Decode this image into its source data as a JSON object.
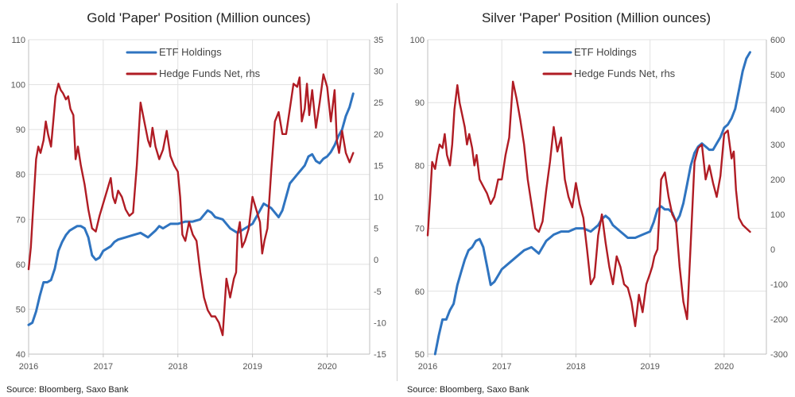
{
  "colors": {
    "etf": "#2f74c0",
    "hedge": "#b01c24",
    "grid": "#e1e1e1",
    "axis": "#bfbfbf"
  },
  "chart_data": [
    {
      "type": "line",
      "title": "Gold 'Paper' Position (Million ounces)",
      "source": "Source: Bloomberg, Saxo Bank",
      "grid": true,
      "legend_position": "top-center",
      "x_ticks": [
        "2016",
        "2017",
        "2018",
        "2019",
        "2020"
      ],
      "x_range": [
        2016.0,
        2020.57
      ],
      "y_left": {
        "range": [
          40,
          110
        ],
        "ticks": [
          "40",
          "50",
          "60",
          "70",
          "80",
          "90",
          "100",
          "110"
        ]
      },
      "y_right": {
        "range": [
          -15,
          35
        ],
        "ticks": [
          "-15",
          "-10",
          "-5",
          "0",
          "5",
          "10",
          "15",
          "20",
          "25",
          "30",
          "35"
        ]
      },
      "series": [
        {
          "name": "ETF Holdings",
          "axis": "left",
          "x": [
            2016.0,
            2016.05,
            2016.1,
            2016.15,
            2016.2,
            2016.25,
            2016.3,
            2016.35,
            2016.4,
            2016.45,
            2016.5,
            2016.55,
            2016.6,
            2016.65,
            2016.7,
            2016.75,
            2016.8,
            2016.85,
            2016.9,
            2016.95,
            2017.0,
            2017.05,
            2017.1,
            2017.15,
            2017.2,
            2017.3,
            2017.4,
            2017.5,
            2017.6,
            2017.7,
            2017.75,
            2017.8,
            2017.9,
            2018.0,
            2018.1,
            2018.2,
            2018.3,
            2018.35,
            2018.4,
            2018.45,
            2018.5,
            2018.6,
            2018.7,
            2018.8,
            2018.9,
            2019.0,
            2019.05,
            2019.1,
            2019.15,
            2019.2,
            2019.25,
            2019.3,
            2019.35,
            2019.4,
            2019.45,
            2019.5,
            2019.55,
            2019.6,
            2019.65,
            2019.7,
            2019.75,
            2019.8,
            2019.85,
            2019.9,
            2019.95,
            2020.0,
            2020.05,
            2020.1,
            2020.15,
            2020.2,
            2020.25,
            2020.3,
            2020.35
          ],
          "values": [
            46.5,
            47,
            49.5,
            53,
            56,
            56,
            56.5,
            59,
            63,
            65,
            66.5,
            67.5,
            68,
            68.5,
            68.5,
            68,
            66,
            62,
            61,
            61.5,
            63,
            63.5,
            64,
            65,
            65.5,
            66,
            66.5,
            67,
            66,
            67.5,
            68.5,
            68,
            69,
            69,
            69.5,
            69.5,
            70,
            71,
            72,
            71.5,
            70.5,
            70,
            68,
            67,
            68,
            69,
            70.5,
            72,
            73.5,
            73,
            72.5,
            71.5,
            70.5,
            72,
            75,
            78,
            79,
            80,
            81,
            82,
            84,
            84.5,
            83,
            82.5,
            83.5,
            84,
            85,
            86.5,
            88.5,
            90,
            93,
            95,
            98
          ]
        },
        {
          "name": "Hedge Funds Net, rhs",
          "axis": "right",
          "x": [
            2016.0,
            2016.03,
            2016.06,
            2016.1,
            2016.13,
            2016.16,
            2016.2,
            2016.23,
            2016.26,
            2016.3,
            2016.33,
            2016.36,
            2016.4,
            2016.43,
            2016.46,
            2016.5,
            2016.53,
            2016.56,
            2016.6,
            2016.63,
            2016.66,
            2016.7,
            2016.75,
            2016.8,
            2016.85,
            2016.9,
            2016.95,
            2017.0,
            2017.05,
            2017.1,
            2017.13,
            2017.16,
            2017.2,
            2017.25,
            2017.3,
            2017.35,
            2017.4,
            2017.45,
            2017.5,
            2017.55,
            2017.6,
            2017.63,
            2017.66,
            2017.7,
            2017.75,
            2017.8,
            2017.85,
            2017.9,
            2017.95,
            2018.0,
            2018.03,
            2018.06,
            2018.1,
            2018.15,
            2018.2,
            2018.25,
            2018.3,
            2018.35,
            2018.4,
            2018.45,
            2018.5,
            2018.55,
            2018.6,
            2018.65,
            2018.7,
            2018.75,
            2018.78,
            2018.8,
            2018.83,
            2018.86,
            2018.9,
            2018.95,
            2019.0,
            2019.05,
            2019.1,
            2019.13,
            2019.16,
            2019.2,
            2019.25,
            2019.3,
            2019.35,
            2019.4,
            2019.45,
            2019.5,
            2019.55,
            2019.6,
            2019.63,
            2019.66,
            2019.7,
            2019.73,
            2019.76,
            2019.8,
            2019.85,
            2019.9,
            2019.95,
            2020.0,
            2020.05,
            2020.1,
            2020.13,
            2020.16,
            2020.2,
            2020.25,
            2020.3,
            2020.35
          ],
          "values": [
            -1.5,
            2,
            8,
            16,
            18,
            17,
            19,
            22,
            20,
            18,
            22,
            26,
            28,
            27,
            26.5,
            25.5,
            26,
            24,
            23,
            16,
            18,
            15,
            12,
            8,
            5,
            4.5,
            7,
            9,
            11,
            13,
            10,
            9,
            11,
            10,
            8,
            7,
            7.5,
            15,
            25,
            22,
            19,
            18,
            21,
            18,
            16,
            17.5,
            20.5,
            16.5,
            15,
            14,
            10,
            4,
            3,
            6,
            4,
            3,
            -2,
            -6,
            -8,
            -9,
            -9,
            -10,
            -12,
            -3,
            -6,
            -3,
            -2,
            4,
            6,
            2,
            3,
            5,
            10,
            8,
            6,
            1,
            3,
            5,
            14,
            22,
            23.5,
            20,
            20,
            24,
            28,
            27.5,
            29,
            22,
            24,
            28,
            23,
            27,
            21,
            25,
            29.5,
            27.5,
            22,
            27,
            19,
            17,
            20.5,
            17,
            15.5,
            17
          ]
        }
      ]
    },
    {
      "type": "line",
      "title": "Silver 'Paper' Position (Million ounces)",
      "source": "Source: Bloomberg, Saxo Bank",
      "grid": true,
      "legend_position": "top-center",
      "x_ticks": [
        "2016",
        "2017",
        "2018",
        "2019",
        "2020"
      ],
      "x_range": [
        2016.0,
        2020.57
      ],
      "y_left": {
        "range": [
          50,
          100
        ],
        "ticks": [
          "50",
          "60",
          "70",
          "80",
          "90",
          "100"
        ]
      },
      "y_right": {
        "range": [
          -300,
          600
        ],
        "ticks": [
          "-300",
          "-200",
          "-100",
          "0",
          "100",
          "200",
          "300",
          "400",
          "500",
          "600"
        ]
      },
      "series": [
        {
          "name": "ETF Holdings",
          "axis": "left",
          "x": [
            2016.1,
            2016.15,
            2016.2,
            2016.25,
            2016.3,
            2016.35,
            2016.4,
            2016.45,
            2016.5,
            2016.55,
            2016.6,
            2016.65,
            2016.7,
            2016.75,
            2016.8,
            2016.85,
            2016.9,
            2016.95,
            2017.0,
            2017.05,
            2017.1,
            2017.2,
            2017.3,
            2017.4,
            2017.5,
            2017.6,
            2017.7,
            2017.8,
            2017.9,
            2018.0,
            2018.1,
            2018.2,
            2018.3,
            2018.35,
            2018.4,
            2018.45,
            2018.5,
            2018.55,
            2018.6,
            2018.7,
            2018.8,
            2018.9,
            2019.0,
            2019.05,
            2019.1,
            2019.15,
            2019.2,
            2019.25,
            2019.3,
            2019.35,
            2019.4,
            2019.45,
            2019.5,
            2019.55,
            2019.6,
            2019.65,
            2019.7,
            2019.75,
            2019.8,
            2019.85,
            2019.9,
            2019.95,
            2020.0,
            2020.05,
            2020.1,
            2020.15,
            2020.2,
            2020.25,
            2020.3,
            2020.35
          ],
          "values": [
            50,
            53,
            55.5,
            55.5,
            57,
            58,
            61,
            63,
            65,
            66.5,
            67,
            68,
            68.3,
            67,
            64,
            61,
            61.5,
            62.5,
            63.5,
            64,
            64.5,
            65.5,
            66.5,
            67,
            66,
            68,
            69,
            69.5,
            69.5,
            70,
            70,
            69.5,
            70.5,
            71.5,
            72,
            71.5,
            70.5,
            70,
            69.5,
            68.5,
            68.5,
            69,
            69.5,
            71,
            73,
            73.5,
            73,
            73,
            72.5,
            71,
            72,
            74,
            77,
            80,
            82,
            83,
            83.5,
            83,
            82.5,
            82.5,
            83.5,
            84.5,
            86,
            86.5,
            87.5,
            89,
            92,
            95,
            97,
            98
          ]
        },
        {
          "name": "Hedge Funds Net, rhs",
          "axis": "right",
          "x": [
            2016.0,
            2016.03,
            2016.06,
            2016.1,
            2016.13,
            2016.16,
            2016.2,
            2016.23,
            2016.26,
            2016.3,
            2016.33,
            2016.36,
            2016.4,
            2016.43,
            2016.46,
            2016.5,
            2016.53,
            2016.56,
            2016.6,
            2016.63,
            2016.66,
            2016.7,
            2016.75,
            2016.8,
            2016.85,
            2016.9,
            2016.95,
            2017.0,
            2017.05,
            2017.1,
            2017.15,
            2017.2,
            2017.25,
            2017.3,
            2017.35,
            2017.4,
            2017.45,
            2017.5,
            2017.55,
            2017.6,
            2017.65,
            2017.7,
            2017.75,
            2017.8,
            2017.85,
            2017.9,
            2017.95,
            2018.0,
            2018.05,
            2018.1,
            2018.15,
            2018.2,
            2018.25,
            2018.3,
            2018.35,
            2018.4,
            2018.45,
            2018.5,
            2018.55,
            2018.6,
            2018.65,
            2018.7,
            2018.75,
            2018.8,
            2018.85,
            2018.9,
            2018.95,
            2019.0,
            2019.03,
            2019.06,
            2019.1,
            2019.15,
            2019.2,
            2019.25,
            2019.3,
            2019.35,
            2019.4,
            2019.45,
            2019.5,
            2019.55,
            2019.6,
            2019.65,
            2019.7,
            2019.75,
            2019.8,
            2019.85,
            2019.9,
            2019.95,
            2020.0,
            2020.05,
            2020.1,
            2020.13,
            2020.16,
            2020.2,
            2020.25,
            2020.3,
            2020.35
          ],
          "values": [
            40,
            140,
            250,
            230,
            270,
            300,
            290,
            330,
            270,
            240,
            300,
            400,
            470,
            420,
            390,
            350,
            300,
            330,
            290,
            240,
            270,
            200,
            180,
            160,
            130,
            150,
            200,
            200,
            270,
            320,
            480,
            430,
            370,
            300,
            200,
            130,
            60,
            50,
            80,
            170,
            250,
            350,
            280,
            320,
            200,
            150,
            120,
            190,
            130,
            90,
            0,
            -100,
            -80,
            40,
            100,
            20,
            -50,
            -100,
            -20,
            -50,
            -100,
            -110,
            -150,
            -220,
            -130,
            -180,
            -100,
            -70,
            -50,
            -20,
            0,
            200,
            220,
            150,
            100,
            80,
            -50,
            -150,
            -200,
            20,
            250,
            290,
            300,
            200,
            240,
            190,
            150,
            210,
            330,
            340,
            260,
            280,
            170,
            90,
            70,
            60,
            50
          ]
        }
      ]
    }
  ]
}
